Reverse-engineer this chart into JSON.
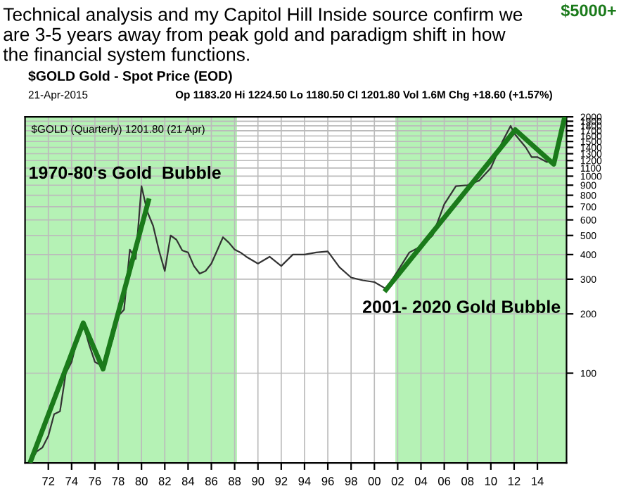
{
  "chart_data": {
    "type": "line",
    "title": "Technical analysis and my Capitol Hill Inside source confirm we are 3-5 years away from peak gold and paradigm shift in how the financial system functions.",
    "annotations": [
      "$GOLD Gold - Spot Price (EOD)",
      "21-Apr-2015",
      "Op 1183.20 Hi 1224.50 Lo 1180.50 Cl 1201.80 Vol 1.6M Chg +18.60 (+1.57%)",
      "$GOLD (Quarterly) 1201.80 (21 Apr)",
      "$5000+"
    ],
    "series": [
      {
        "color": "#333333",
        "x": [
          1970.5,
          1971,
          1971.5,
          1972,
          1972.5,
          1973,
          1973.5,
          1974,
          1974.5,
          1975,
          1975.5,
          1976,
          1976.7,
          1977,
          1977.5,
          1978,
          1978.5,
          1979,
          1979.5,
          1980,
          1980.5,
          1981,
          1981.5,
          1982,
          1982.5,
          1983,
          1983.5,
          1984,
          1984.5,
          1985,
          1985.5,
          1986,
          1986.5,
          1987,
          1987.5,
          1988,
          1988.5,
          1989,
          1990,
          1991,
          1992,
          1993,
          1994,
          1995,
          1996,
          1997,
          1998,
          1999,
          2000,
          2001,
          2002,
          2003,
          2004,
          2005,
          2006,
          2007,
          2008,
          2009,
          2010,
          2011,
          2011.7,
          2012,
          2013,
          2013.5,
          2014,
          2014.8,
          2015.3
        ],
        "values": [
          36,
          40,
          42,
          48,
          62,
          64,
          100,
          114,
          150,
          178,
          140,
          114,
          108,
          130,
          146,
          195,
          210,
          424,
          380,
          890,
          660,
          560,
          420,
          330,
          500,
          476,
          420,
          410,
          350,
          320,
          330,
          360,
          420,
          490,
          460,
          424,
          410,
          390,
          360,
          390,
          350,
          400,
          400,
          410,
          415,
          345,
          306,
          296,
          290,
          268,
          330,
          410,
          440,
          500,
          720,
          890,
          900,
          950,
          1100,
          1500,
          1800,
          1650,
          1400,
          1250,
          1250,
          1180,
          1200
        ]
      },
      {
        "color": "#1a7a1a",
        "x": [
          1970.5,
          1975,
          1976.7,
          1980.6
        ],
        "values": [
          36,
          180,
          105,
          750
        ]
      },
      {
        "color": "#1a7a1a",
        "x": [
          2001,
          2012.1,
          2015.4,
          2016.3
        ],
        "values": [
          265,
          1720,
          1150,
          1950
        ]
      }
    ],
    "xlim": [
      1970,
      2016.5
    ],
    "xticks": [
      {
        "value": 1972,
        "label": "72"
      },
      {
        "value": 1974,
        "label": "74"
      },
      {
        "value": 1976,
        "label": "76"
      },
      {
        "value": 1978,
        "label": "78"
      },
      {
        "value": 1980,
        "label": "80"
      },
      {
        "value": 1982,
        "label": "82"
      },
      {
        "value": 1984,
        "label": "84"
      },
      {
        "value": 1986,
        "label": "86"
      },
      {
        "value": 1988,
        "label": "88"
      },
      {
        "value": 1990,
        "label": "90"
      },
      {
        "value": 1992,
        "label": "92"
      },
      {
        "value": 1994,
        "label": "94"
      },
      {
        "value": 1996,
        "label": "96"
      },
      {
        "value": 1998,
        "label": "98"
      },
      {
        "value": 2000,
        "label": "00"
      },
      {
        "value": 2002,
        "label": "02"
      },
      {
        "value": 2004,
        "label": "04"
      },
      {
        "value": 2006,
        "label": "06"
      },
      {
        "value": 2008,
        "label": "08"
      },
      {
        "value": 2010,
        "label": "10"
      },
      {
        "value": 2012,
        "label": "12"
      },
      {
        "value": 2014,
        "label": "14"
      }
    ],
    "log": true,
    "ylim": [
      35,
      2000
    ],
    "yticks": [
      100,
      200,
      300,
      400,
      500,
      600,
      700,
      800,
      900,
      1000,
      1100,
      1200,
      1300,
      1400,
      1500,
      1600,
      1700,
      1800,
      1900,
      2000
    ],
    "bands": [
      {
        "axis": "x",
        "from": 1970,
        "to": 1988.2,
        "label": "1970-80's Gold  Bubble",
        "color": "#a8f0a8"
      },
      {
        "axis": "x",
        "from": 2001.8,
        "to": 2016.5,
        "label": "2001- 2020 Gold Bubble",
        "color": "#a8f0a8"
      }
    ],
    "grid": true,
    "legend": false
  }
}
